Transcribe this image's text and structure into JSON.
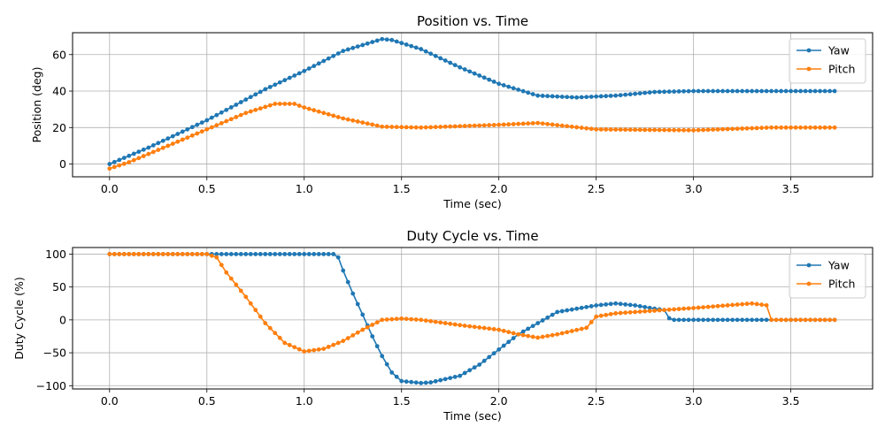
{
  "chart_data": [
    {
      "type": "line",
      "title": "Position vs. Time",
      "xlabel": "Time (sec)",
      "ylabel": "Position (deg)",
      "xlim": [
        -0.19,
        3.92
      ],
      "ylim": [
        -7,
        72
      ],
      "xticks": [
        0.0,
        0.5,
        1.0,
        1.5,
        2.0,
        2.5,
        3.0,
        3.5
      ],
      "xtick_labels": [
        "0.0",
        "0.5",
        "1.0",
        "1.5",
        "2.0",
        "2.5",
        "3.0",
        "3.5"
      ],
      "yticks": [
        0,
        20,
        40,
        60
      ],
      "ytick_labels": [
        "0",
        "20",
        "40",
        "60"
      ],
      "grid": true,
      "legend": "top-right",
      "x": {
        "start": 0,
        "step": 0.025,
        "count": 150
      },
      "series": [
        {
          "name": "Yaw",
          "color": "#1f77b4",
          "keypoints": [
            [
              0,
              0
            ],
            [
              0.2,
              9
            ],
            [
              0.5,
              24
            ],
            [
              0.8,
              41
            ],
            [
              1.0,
              51
            ],
            [
              1.2,
              62
            ],
            [
              1.4,
              68.5
            ],
            [
              1.45,
              68
            ],
            [
              1.6,
              63
            ],
            [
              1.8,
              53
            ],
            [
              2.0,
              44
            ],
            [
              2.2,
              37.5
            ],
            [
              2.3,
              37
            ],
            [
              2.4,
              36.5
            ],
            [
              2.5,
              37
            ],
            [
              2.6,
              37.5
            ],
            [
              2.8,
              39.5
            ],
            [
              3.0,
              40
            ],
            [
              3.73,
              40
            ]
          ]
        },
        {
          "name": "Pitch",
          "color": "#ff7f0e",
          "keypoints": [
            [
              0,
              -2.5
            ],
            [
              0.1,
              1
            ],
            [
              0.3,
              10
            ],
            [
              0.5,
              19
            ],
            [
              0.7,
              28
            ],
            [
              0.85,
              33
            ],
            [
              0.95,
              33
            ],
            [
              1.0,
              31
            ],
            [
              1.2,
              25
            ],
            [
              1.4,
              20.5
            ],
            [
              1.6,
              20
            ],
            [
              2.0,
              21.5
            ],
            [
              2.2,
              22.5
            ],
            [
              2.5,
              19
            ],
            [
              3.0,
              18.5
            ],
            [
              3.4,
              20
            ],
            [
              3.73,
              20
            ]
          ]
        }
      ]
    },
    {
      "type": "line",
      "title": "Duty Cycle vs. Time",
      "xlabel": "Time (sec)",
      "ylabel": "Duty Cycle (%)",
      "xlim": [
        -0.19,
        3.92
      ],
      "ylim": [
        -105,
        110
      ],
      "xticks": [
        0.0,
        0.5,
        1.0,
        1.5,
        2.0,
        2.5,
        3.0,
        3.5
      ],
      "xtick_labels": [
        "0.0",
        "0.5",
        "1.0",
        "1.5",
        "2.0",
        "2.5",
        "3.0",
        "3.5"
      ],
      "yticks": [
        -100,
        -50,
        0,
        50,
        100
      ],
      "ytick_labels": [
        "−100",
        "−50",
        "0",
        "50",
        "100"
      ],
      "grid": true,
      "legend": "top-right",
      "x": {
        "start": 0,
        "step": 0.025,
        "count": 150
      },
      "series": [
        {
          "name": "Yaw",
          "color": "#1f77b4",
          "keypoints": [
            [
              0,
              100
            ],
            [
              1.15,
              100
            ],
            [
              1.175,
              95
            ],
            [
              1.2,
              75
            ],
            [
              1.25,
              40
            ],
            [
              1.3,
              8
            ],
            [
              1.35,
              -25
            ],
            [
              1.4,
              -55
            ],
            [
              1.45,
              -80
            ],
            [
              1.5,
              -93
            ],
            [
              1.6,
              -96
            ],
            [
              1.65,
              -95
            ],
            [
              1.8,
              -85
            ],
            [
              1.9,
              -68
            ],
            [
              2.0,
              -45
            ],
            [
              2.1,
              -22
            ],
            [
              2.2,
              -5
            ],
            [
              2.3,
              12
            ],
            [
              2.5,
              22
            ],
            [
              2.6,
              25
            ],
            [
              2.7,
              22
            ],
            [
              2.8,
              17
            ],
            [
              2.85,
              15
            ],
            [
              2.88,
              0
            ],
            [
              3.73,
              0
            ]
          ]
        },
        {
          "name": "Pitch",
          "color": "#ff7f0e",
          "keypoints": [
            [
              0,
              100
            ],
            [
              0.5,
              100
            ],
            [
              0.55,
              95
            ],
            [
              0.6,
              72
            ],
            [
              0.7,
              35
            ],
            [
              0.8,
              -5
            ],
            [
              0.9,
              -35
            ],
            [
              1.0,
              -48
            ],
            [
              1.1,
              -44
            ],
            [
              1.2,
              -32
            ],
            [
              1.3,
              -15
            ],
            [
              1.4,
              0
            ],
            [
              1.5,
              2
            ],
            [
              1.6,
              0
            ],
            [
              1.8,
              -8
            ],
            [
              2.0,
              -15
            ],
            [
              2.1,
              -22
            ],
            [
              2.2,
              -27
            ],
            [
              2.3,
              -22
            ],
            [
              2.45,
              -12
            ],
            [
              2.5,
              5
            ],
            [
              2.6,
              10
            ],
            [
              2.8,
              14
            ],
            [
              3.0,
              18
            ],
            [
              3.3,
              25
            ],
            [
              3.38,
              22
            ],
            [
              3.4,
              0
            ],
            [
              3.73,
              0
            ]
          ]
        }
      ]
    }
  ]
}
